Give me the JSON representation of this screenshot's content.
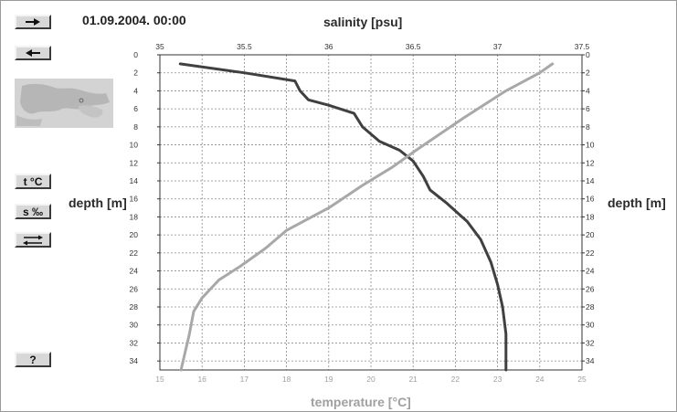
{
  "controls": {
    "next_icon": "arrow-right-icon",
    "prev_icon": "arrow-left-icon",
    "temperature_label": "t °C",
    "salinity_label": "s ‰",
    "swap_icon": "swap-arrows-icon",
    "help_label": "?"
  },
  "header": {
    "datetime": "01.09.2004. 00:00"
  },
  "map": {
    "icon": "region-map-thumbnail"
  },
  "colors": {
    "salinity": "#404040",
    "temperature": "#a8a8a8",
    "grid": "#8a8a8a",
    "panel_button": "#d8d8d8"
  },
  "chart_data": {
    "type": "line",
    "grid": true,
    "y": {
      "label": "depth [m]",
      "range": [
        0,
        35
      ],
      "inverted": true,
      "ticks": [
        0,
        2,
        4,
        6,
        8,
        10,
        12,
        14,
        16,
        18,
        20,
        22,
        24,
        26,
        28,
        30,
        32,
        34
      ]
    },
    "x_top": {
      "label": "salinity [psu]",
      "range": [
        35,
        37.5
      ],
      "ticks": [
        "35",
        "35.5",
        "36",
        "36.5",
        "37",
        "37.5"
      ]
    },
    "x_bottom": {
      "label": "temperature [°C]",
      "range": [
        15,
        25
      ],
      "ticks": [
        "15",
        "16",
        "17",
        "18",
        "19",
        "20",
        "21",
        "22",
        "23",
        "24",
        "25"
      ]
    },
    "series": [
      {
        "axis": "top",
        "color": "#404040",
        "points": [
          [
            35.12,
            1
          ],
          [
            35.5,
            2
          ],
          [
            35.8,
            2.9
          ],
          [
            35.83,
            4
          ],
          [
            35.88,
            5
          ],
          [
            36.0,
            5.6
          ],
          [
            36.15,
            6.5
          ],
          [
            36.2,
            8
          ],
          [
            36.3,
            9.6
          ],
          [
            36.42,
            10.6
          ],
          [
            36.5,
            11.8
          ],
          [
            36.56,
            13.5
          ],
          [
            36.6,
            15
          ],
          [
            36.7,
            16.5
          ],
          [
            36.82,
            18.5
          ],
          [
            36.9,
            20.5
          ],
          [
            36.96,
            23
          ],
          [
            37.0,
            25.5
          ],
          [
            37.03,
            28
          ],
          [
            37.05,
            31
          ],
          [
            37.05,
            33
          ],
          [
            37.05,
            35
          ]
        ]
      },
      {
        "axis": "bottom",
        "color": "#a8a8a8",
        "points": [
          [
            24.3,
            1
          ],
          [
            24.0,
            2
          ],
          [
            23.2,
            4
          ],
          [
            22.2,
            7
          ],
          [
            21.1,
            10.5
          ],
          [
            20.5,
            12.5
          ],
          [
            19.8,
            14.5
          ],
          [
            19.0,
            17
          ],
          [
            18.0,
            19.5
          ],
          [
            17.5,
            21.5
          ],
          [
            16.9,
            23.5
          ],
          [
            16.4,
            25
          ],
          [
            16.0,
            27
          ],
          [
            15.8,
            28.5
          ],
          [
            15.7,
            31
          ],
          [
            15.6,
            33
          ],
          [
            15.5,
            35
          ]
        ]
      }
    ]
  }
}
